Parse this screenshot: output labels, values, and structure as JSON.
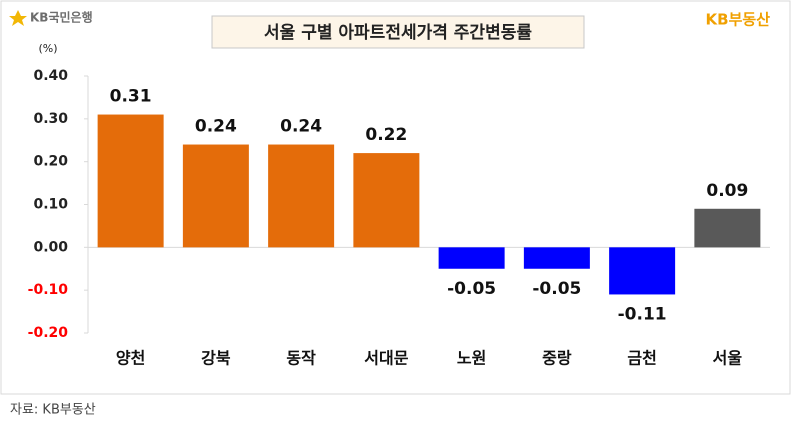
{
  "header": {
    "logo_left": "KB국민은행",
    "logo_right": "KB부동산"
  },
  "chart_data": {
    "type": "bar",
    "title": "서울 구별 아파트전세가격 주간변동률",
    "y_unit": "(%)",
    "categories": [
      "양천",
      "강북",
      "동작",
      "서대문",
      "노원",
      "중랑",
      "금천",
      "서울"
    ],
    "values": [
      0.31,
      0.24,
      0.24,
      0.22,
      -0.05,
      -0.05,
      -0.11,
      0.09
    ],
    "colors": [
      "#e46c0a",
      "#e46c0a",
      "#e46c0a",
      "#e46c0a",
      "#0000ff",
      "#0000ff",
      "#0000ff",
      "#595959"
    ],
    "ylim": [
      -0.2,
      0.4
    ],
    "yticks": [
      {
        "value": 0.4,
        "label": "0.40"
      },
      {
        "value": 0.3,
        "label": "0.30"
      },
      {
        "value": 0.2,
        "label": "0.20"
      },
      {
        "value": 0.1,
        "label": "0.10"
      },
      {
        "value": 0,
        "label": "0.00"
      },
      {
        "value": -0.1,
        "label": "-0.10"
      },
      {
        "value": -0.2,
        "label": "-0.20"
      }
    ],
    "negative_tick_color": "#ff0000"
  },
  "footer": {
    "source": "자료: KB부동산"
  }
}
